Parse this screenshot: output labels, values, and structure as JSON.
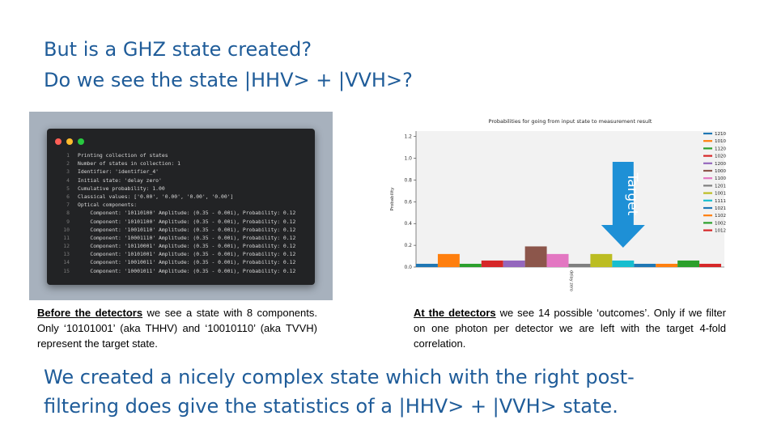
{
  "slide": {
    "title_line1": "But is a GHZ state created?",
    "title_line2": "Do we see the state |HHV> + |VVH>?",
    "summary_line1": "We created a nicely complex state which with the right post-",
    "summary_line2": "filtering does give the statistics of a |HHV> + |VVH> state."
  },
  "code_panel": {
    "lines": [
      {
        "num": "1",
        "text": "Printing collection of states"
      },
      {
        "num": "2",
        "text": "Number of states in collection: 1"
      },
      {
        "num": "3",
        "text": "Identifier: 'identifier_4'"
      },
      {
        "num": "4",
        "text": "Initial state: 'delay zero'"
      },
      {
        "num": "5",
        "text": "Cumulative probability: 1.00"
      },
      {
        "num": "6",
        "text": "Classical values: ['0.00', '0.00', '0.00', '0.00']"
      },
      {
        "num": "7",
        "text": "Optical components:"
      },
      {
        "num": "8",
        "text": "    Component: '10110100' Amplitude: (0.35 - 0.00i), Probability: 0.12"
      },
      {
        "num": "9",
        "text": "    Component: '10101100' Amplitude: (0.35 - 0.00i), Probability: 0.12"
      },
      {
        "num": "10",
        "text": "    Component: '10010110' Amplitude: (0.35 - 0.00i), Probability: 0.12"
      },
      {
        "num": "11",
        "text": "    Component: '10001110' Amplitude: (0.35 - 0.00i), Probability: 0.12"
      },
      {
        "num": "12",
        "text": "    Component: '10110001' Amplitude: (0.35 - 0.00i), Probability: 0.12"
      },
      {
        "num": "13",
        "text": "    Component: '10101001' Amplitude: (0.35 - 0.00i), Probability: 0.12"
      },
      {
        "num": "14",
        "text": "    Component: '10010011' Amplitude: (0.35 - 0.00i), Probability: 0.12"
      },
      {
        "num": "15",
        "text": "    Component: '10001011' Amplitude: (0.35 - 0.00i), Probability: 0.12"
      }
    ]
  },
  "caption_left": {
    "lead": "Before the detectors",
    "text": " we see a state with 8 components. Only ‘10101001’ (aka THHV) and ‘10010110’ (aka TVVH) represent the target state."
  },
  "caption_right": {
    "lead": "At the detectors",
    "text": " we see 14 possible ‘outcomes’. Only if we filter on one photon per detector we are left with the target 4-fold correlation."
  },
  "chart_data": {
    "type": "bar",
    "title": "Probabilities for going from input state to measurement result",
    "ylabel": "Probability",
    "xlabel": "",
    "x_tick_label": "delay zero",
    "ylim": [
      0,
      1.25
    ],
    "yticks": [
      0.0,
      0.2,
      0.4,
      0.6,
      0.8,
      1.0,
      1.2
    ],
    "grid": false,
    "legend_position": "right",
    "annotation": "Target",
    "annotation_color": "#1e90d6",
    "annotation_target_series": "1111",
    "series": [
      {
        "name": "1210",
        "value": 0.03,
        "color": "#1f77b4"
      },
      {
        "name": "1010",
        "value": 0.12,
        "color": "#ff7f0e"
      },
      {
        "name": "1120",
        "value": 0.03,
        "color": "#2ca02c"
      },
      {
        "name": "1020",
        "value": 0.06,
        "color": "#d62728"
      },
      {
        "name": "1200",
        "value": 0.06,
        "color": "#9467bd"
      },
      {
        "name": "1000",
        "value": 0.19,
        "color": "#8c564b"
      },
      {
        "name": "1100",
        "value": 0.12,
        "color": "#e377c2"
      },
      {
        "name": "1201",
        "value": 0.03,
        "color": "#7f7f7f"
      },
      {
        "name": "1001",
        "value": 0.12,
        "color": "#bcbd22"
      },
      {
        "name": "1111",
        "value": 0.06,
        "color": "#17becf"
      },
      {
        "name": "1021",
        "value": 0.03,
        "color": "#1f77b4"
      },
      {
        "name": "1102",
        "value": 0.03,
        "color": "#ff7f0e"
      },
      {
        "name": "1002",
        "value": 0.06,
        "color": "#2ca02c"
      },
      {
        "name": "1012",
        "value": 0.03,
        "color": "#d62728"
      }
    ]
  }
}
